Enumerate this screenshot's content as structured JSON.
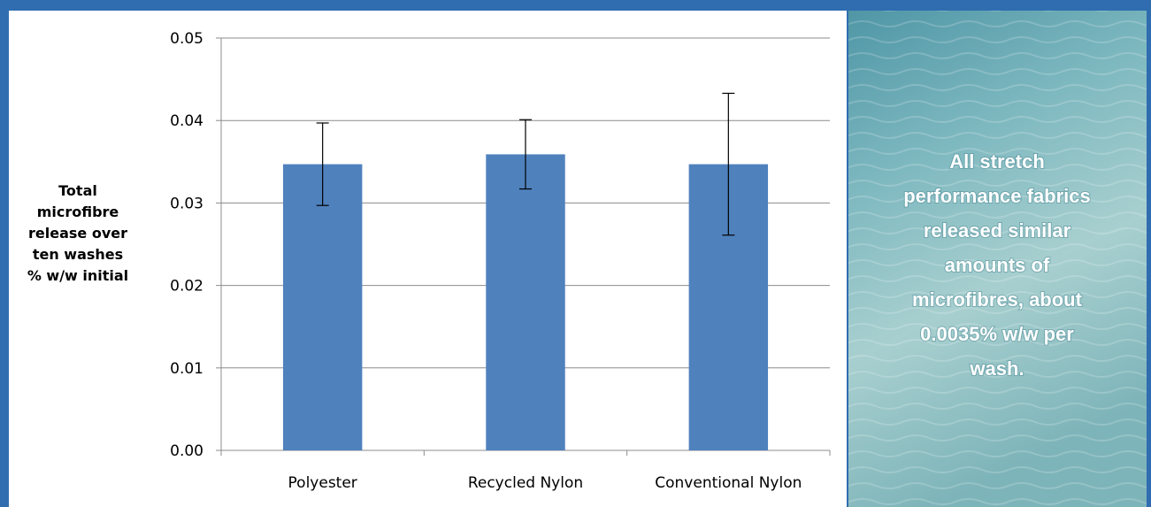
{
  "chart_data": {
    "type": "bar",
    "categories": [
      "Polyester",
      "Recycled Nylon",
      "Conventional Nylon"
    ],
    "values": [
      0.0347,
      0.0359,
      0.0347
    ],
    "errors": [
      0.005,
      0.0042,
      0.0086
    ],
    "color": "#4f81bd",
    "ylim": [
      0,
      0.05
    ],
    "yticks": [
      {
        "value": 0,
        "label": "0.00"
      },
      {
        "value": 0.01,
        "label": "0.01"
      },
      {
        "value": 0.02,
        "label": "0.02"
      },
      {
        "value": 0.03,
        "label": "0.03"
      },
      {
        "value": 0.04,
        "label": "0.04"
      },
      {
        "value": 0.05,
        "label": "0.05"
      }
    ],
    "grid": true,
    "ylabel": [
      "Total",
      "microfibre",
      "release over",
      "ten washes",
      "% w/w initial"
    ],
    "annotation": [
      "All stretch",
      "performance fabrics",
      "released similar",
      "amounts of",
      "microfibres, about",
      "0.0035% w/w per",
      "wash."
    ]
  }
}
